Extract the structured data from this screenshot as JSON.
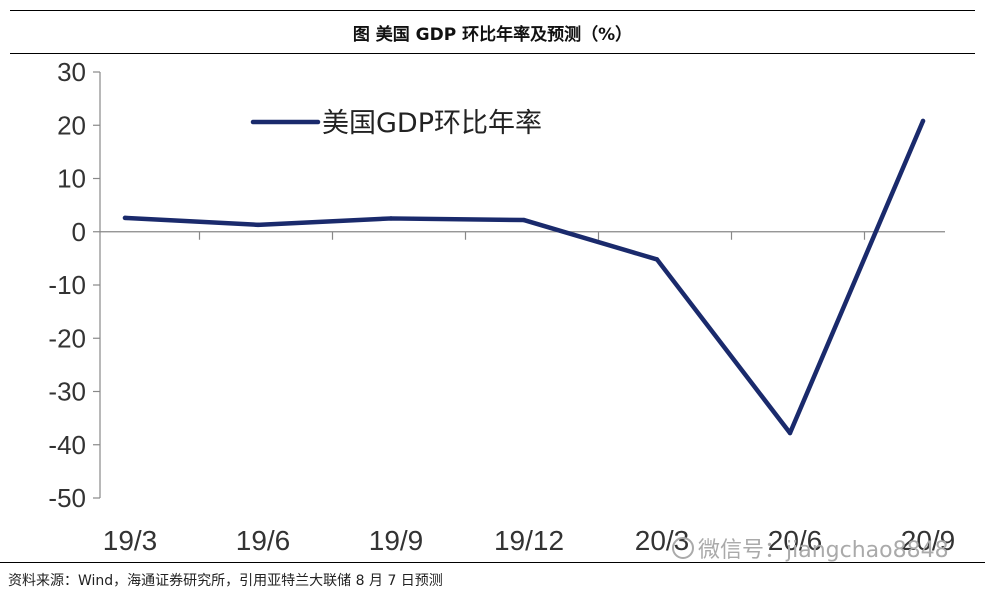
{
  "header": {
    "title": "图  美国 GDP 环比年率及预测（%）"
  },
  "chart_data": {
    "type": "line",
    "title": "",
    "xlabel": "",
    "ylabel": "",
    "categories": [
      "19/3",
      "19/6",
      "19/9",
      "19/12",
      "20/3",
      "20/6",
      "20/9"
    ],
    "series": [
      {
        "name": "美国GDP环比年率",
        "values": [
          2.6,
          1.3,
          2.5,
          2.2,
          -5.2,
          -37.8,
          20.8
        ],
        "color": "#1a2a6c"
      }
    ],
    "ylim": [
      -50,
      30
    ],
    "yticks": [
      "30",
      "20",
      "10",
      "0",
      "-10",
      "-20",
      "-30",
      "-40",
      "-50"
    ],
    "legend_position": "top-left",
    "grid": false
  },
  "footer": {
    "source": "资料来源：Wind，海通证券研究所，引用亚特兰大联储 8 月 7 日预测",
    "watermark": "微信号：jiangchao8848"
  }
}
